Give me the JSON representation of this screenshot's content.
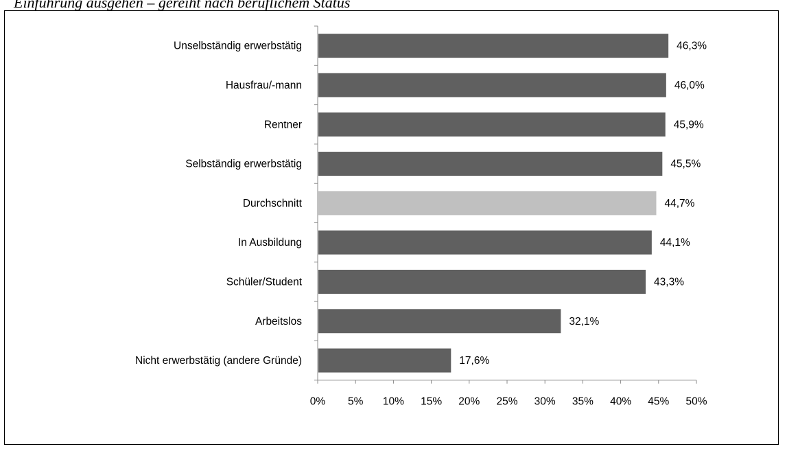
{
  "caption": "Einführung ausgehen – gereiht nach beruflichem Status",
  "chart_data": {
    "type": "bar",
    "orientation": "horizontal",
    "categories": [
      "Unselbständig erwerbstätig",
      "Hausfrau/-mann",
      "Rentner",
      "Selbständig erwerbstätig",
      "Durchschnitt",
      "In Ausbildung",
      "Schüler/Student",
      "Arbeitslos",
      "Nicht erwerbstätig (andere Gründe)"
    ],
    "values": [
      46.3,
      46.0,
      45.9,
      45.5,
      44.7,
      44.1,
      43.3,
      32.1,
      17.6
    ],
    "value_labels": [
      "46,3%",
      "46,0%",
      "45,9%",
      "45,5%",
      "44,7%",
      "44,1%",
      "43,3%",
      "32,1%",
      "17,6%"
    ],
    "highlight_category": "Durchschnitt",
    "xlim": [
      0,
      50
    ],
    "x_ticks": [
      0,
      5,
      10,
      15,
      20,
      25,
      30,
      35,
      40,
      45,
      50
    ],
    "x_tick_labels": [
      "0%",
      "5%",
      "10%",
      "15%",
      "20%",
      "25%",
      "30%",
      "35%",
      "40%",
      "45%",
      "50%"
    ],
    "grid": false,
    "legend": "none",
    "colors": {
      "bar": "#606060",
      "highlight": "#c0c0c0",
      "axis": "#888888"
    }
  }
}
